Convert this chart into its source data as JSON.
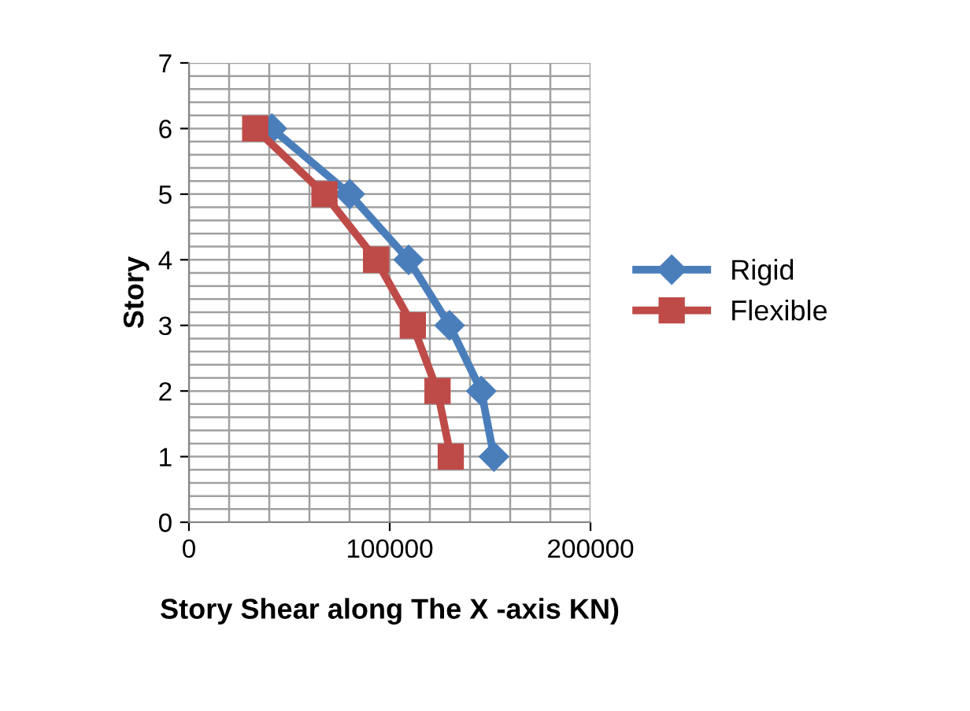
{
  "chart_data": {
    "type": "line",
    "xlabel": "Story Shear along The X -axis KN)",
    "ylabel": "Story",
    "series": [
      {
        "name": "Rigid",
        "color": "#4a7ebb",
        "marker": "diamond",
        "x": [
          151900,
          145600,
          129800,
          109400,
          80100,
          41300
        ],
        "values": [
          1,
          2,
          3,
          4,
          5,
          6
        ]
      },
      {
        "name": "Flexible",
        "color": "#be4b48",
        "marker": "square",
        "x": [
          130400,
          123800,
          111500,
          93200,
          67500,
          33000
        ],
        "values": [
          1,
          2,
          3,
          4,
          5,
          6
        ]
      }
    ],
    "xlim": [
      0,
      200000
    ],
    "xticks": [
      0,
      100000,
      200000
    ],
    "ylim": [
      0,
      7
    ],
    "yticks": [
      0,
      1,
      2,
      3,
      4,
      5,
      6,
      7
    ],
    "grid": true,
    "legend": "right"
  }
}
